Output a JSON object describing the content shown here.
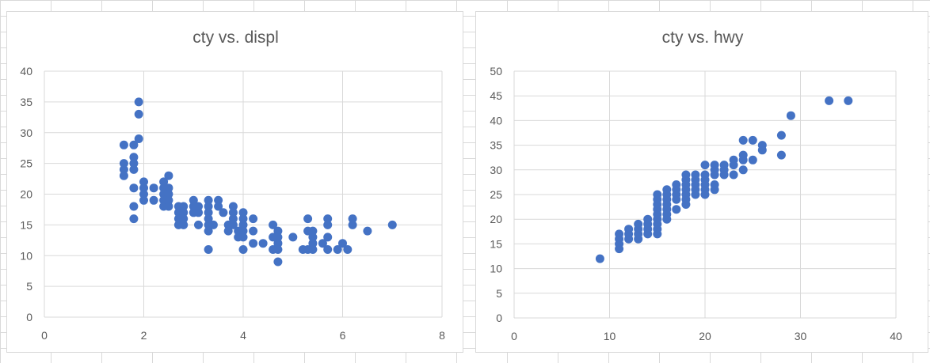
{
  "chart_data": [
    {
      "type": "scatter",
      "title": "cty vs. displ",
      "xlabel": "",
      "ylabel": "",
      "xlim": [
        0,
        8
      ],
      "ylim": [
        0,
        40
      ],
      "xticks": [
        "0",
        "2",
        "4",
        "6",
        "8"
      ],
      "yticks": [
        "0",
        "5",
        "10",
        "15",
        "20",
        "25",
        "30",
        "35",
        "40"
      ],
      "grid": true,
      "marker_color": "#4472C4",
      "points": [
        [
          1.6,
          28
        ],
        [
          1.6,
          25
        ],
        [
          1.6,
          24
        ],
        [
          1.6,
          23
        ],
        [
          1.8,
          28
        ],
        [
          1.8,
          26
        ],
        [
          1.8,
          25
        ],
        [
          1.8,
          24
        ],
        [
          1.8,
          21
        ],
        [
          1.8,
          18
        ],
        [
          1.8,
          16
        ],
        [
          1.9,
          35
        ],
        [
          1.9,
          33
        ],
        [
          1.9,
          29
        ],
        [
          2.0,
          22
        ],
        [
          2.0,
          21
        ],
        [
          2.0,
          20
        ],
        [
          2.0,
          19
        ],
        [
          2.2,
          21
        ],
        [
          2.2,
          19
        ],
        [
          2.4,
          22
        ],
        [
          2.4,
          21
        ],
        [
          2.4,
          20
        ],
        [
          2.4,
          19
        ],
        [
          2.4,
          18
        ],
        [
          2.5,
          23
        ],
        [
          2.5,
          21
        ],
        [
          2.5,
          20
        ],
        [
          2.5,
          19
        ],
        [
          2.5,
          18
        ],
        [
          2.7,
          18
        ],
        [
          2.7,
          17
        ],
        [
          2.7,
          16
        ],
        [
          2.7,
          15
        ],
        [
          2.8,
          18
        ],
        [
          2.8,
          17
        ],
        [
          2.8,
          16
        ],
        [
          2.8,
          15
        ],
        [
          3.0,
          19
        ],
        [
          3.0,
          18
        ],
        [
          3.0,
          17
        ],
        [
          3.1,
          18
        ],
        [
          3.1,
          17
        ],
        [
          3.1,
          15
        ],
        [
          3.3,
          19
        ],
        [
          3.3,
          18
        ],
        [
          3.3,
          17
        ],
        [
          3.3,
          16
        ],
        [
          3.3,
          15
        ],
        [
          3.3,
          14
        ],
        [
          3.3,
          11
        ],
        [
          3.4,
          15
        ],
        [
          3.5,
          19
        ],
        [
          3.5,
          18
        ],
        [
          3.6,
          17
        ],
        [
          3.7,
          15
        ],
        [
          3.7,
          14
        ],
        [
          3.8,
          18
        ],
        [
          3.8,
          17
        ],
        [
          3.8,
          16
        ],
        [
          3.8,
          15
        ],
        [
          3.9,
          14
        ],
        [
          3.9,
          13
        ],
        [
          4.0,
          17
        ],
        [
          4.0,
          16
        ],
        [
          4.0,
          15
        ],
        [
          4.0,
          14
        ],
        [
          4.0,
          13
        ],
        [
          4.0,
          11
        ],
        [
          4.2,
          16
        ],
        [
          4.2,
          14
        ],
        [
          4.2,
          12
        ],
        [
          4.4,
          12
        ],
        [
          4.6,
          15
        ],
        [
          4.6,
          13
        ],
        [
          4.6,
          11
        ],
        [
          4.7,
          14
        ],
        [
          4.7,
          13
        ],
        [
          4.7,
          12
        ],
        [
          4.7,
          11
        ],
        [
          4.7,
          9
        ],
        [
          5.0,
          13
        ],
        [
          5.2,
          11
        ],
        [
          5.3,
          16
        ],
        [
          5.3,
          14
        ],
        [
          5.3,
          11
        ],
        [
          5.4,
          14
        ],
        [
          5.4,
          13
        ],
        [
          5.4,
          12
        ],
        [
          5.4,
          11
        ],
        [
          5.6,
          12
        ],
        [
          5.7,
          16
        ],
        [
          5.7,
          15
        ],
        [
          5.7,
          13
        ],
        [
          5.7,
          11
        ],
        [
          5.9,
          11
        ],
        [
          6.0,
          12
        ],
        [
          6.1,
          11
        ],
        [
          6.2,
          16
        ],
        [
          6.2,
          15
        ],
        [
          6.5,
          14
        ],
        [
          7.0,
          15
        ]
      ]
    },
    {
      "type": "scatter",
      "title": "cty vs. hwy",
      "xlabel": "",
      "ylabel": "",
      "xlim": [
        0,
        40
      ],
      "ylim": [
        0,
        50
      ],
      "xticks": [
        "0",
        "10",
        "20",
        "30",
        "40"
      ],
      "yticks": [
        "0",
        "5",
        "10",
        "15",
        "20",
        "25",
        "30",
        "35",
        "40",
        "45",
        "50"
      ],
      "grid": true,
      "marker_color": "#4472C4",
      "points": [
        [
          9,
          12
        ],
        [
          11,
          17
        ],
        [
          11,
          16
        ],
        [
          11,
          15
        ],
        [
          11,
          14
        ],
        [
          12,
          18
        ],
        [
          12,
          17
        ],
        [
          12,
          16
        ],
        [
          13,
          19
        ],
        [
          13,
          18
        ],
        [
          13,
          17
        ],
        [
          13,
          16
        ],
        [
          14,
          20
        ],
        [
          14,
          19
        ],
        [
          14,
          18
        ],
        [
          14,
          17
        ],
        [
          15,
          25
        ],
        [
          15,
          24
        ],
        [
          15,
          23
        ],
        [
          15,
          22
        ],
        [
          15,
          21
        ],
        [
          15,
          20
        ],
        [
          15,
          19
        ],
        [
          15,
          18
        ],
        [
          15,
          17
        ],
        [
          16,
          26
        ],
        [
          16,
          25
        ],
        [
          16,
          24
        ],
        [
          16,
          23
        ],
        [
          16,
          22
        ],
        [
          16,
          21
        ],
        [
          16,
          20
        ],
        [
          17,
          27
        ],
        [
          17,
          26
        ],
        [
          17,
          25
        ],
        [
          17,
          24
        ],
        [
          17,
          22
        ],
        [
          18,
          29
        ],
        [
          18,
          28
        ],
        [
          18,
          27
        ],
        [
          18,
          26
        ],
        [
          18,
          25
        ],
        [
          18,
          24
        ],
        [
          18,
          23
        ],
        [
          19,
          29
        ],
        [
          19,
          28
        ],
        [
          19,
          27
        ],
        [
          19,
          26
        ],
        [
          19,
          25
        ],
        [
          20,
          31
        ],
        [
          20,
          29
        ],
        [
          20,
          28
        ],
        [
          20,
          27
        ],
        [
          20,
          26
        ],
        [
          20,
          25
        ],
        [
          21,
          31
        ],
        [
          21,
          30
        ],
        [
          21,
          29
        ],
        [
          21,
          27
        ],
        [
          21,
          26
        ],
        [
          22,
          31
        ],
        [
          22,
          30
        ],
        [
          22,
          29
        ],
        [
          23,
          32
        ],
        [
          23,
          31
        ],
        [
          23,
          29
        ],
        [
          24,
          36
        ],
        [
          24,
          33
        ],
        [
          24,
          32
        ],
        [
          24,
          30
        ],
        [
          25,
          36
        ],
        [
          25,
          32
        ],
        [
          26,
          35
        ],
        [
          26,
          34
        ],
        [
          28,
          37
        ],
        [
          28,
          33
        ],
        [
          29,
          41
        ],
        [
          33,
          44
        ],
        [
          35,
          44
        ]
      ]
    }
  ]
}
